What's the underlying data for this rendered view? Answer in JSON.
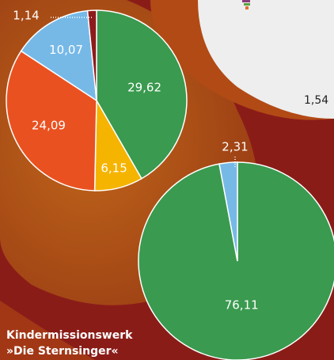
{
  "chart_data": [
    {
      "type": "pie",
      "categories": [
        null,
        null,
        null,
        null,
        null
      ],
      "values": [
        29.62,
        6.15,
        24.09,
        10.07,
        1.14
      ],
      "value_labels": [
        "29,62",
        "6,15",
        "24,09",
        "10,07",
        "1,14"
      ],
      "colors": [
        "#3a9a4f",
        "#f5b400",
        "#ea5120",
        "#76b9e7",
        "#8e1b1b"
      ]
    },
    {
      "type": "pie",
      "categories": [
        null,
        null
      ],
      "values": [
        76.11,
        2.31
      ],
      "value_labels": [
        "76,11",
        "2,31"
      ],
      "colors": [
        "#3a9a4f",
        "#76b9e7"
      ]
    }
  ],
  "caption": "Kindermissionswerk »Die Sternsinger«",
  "partial_label": "1,54"
}
